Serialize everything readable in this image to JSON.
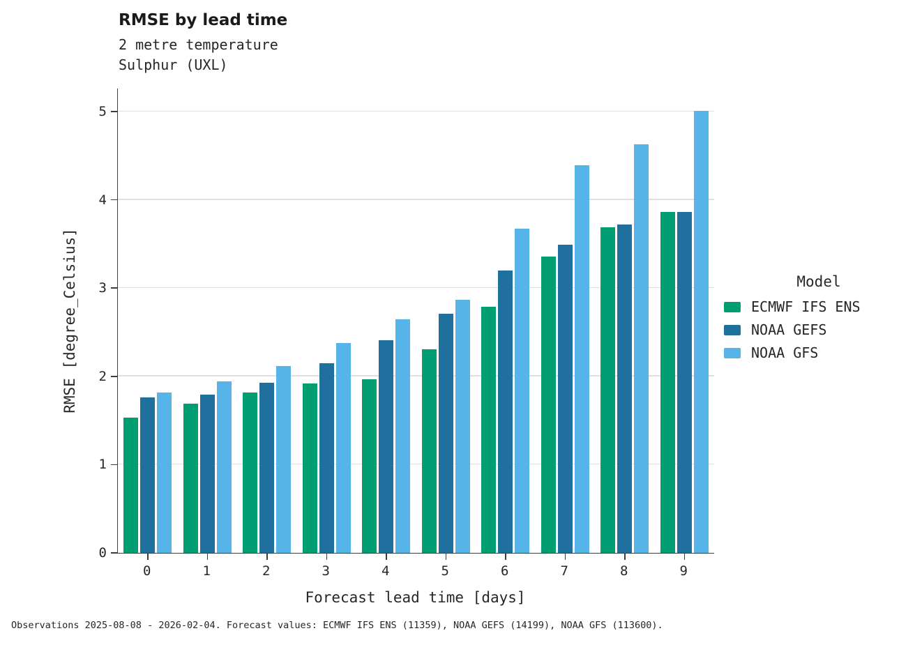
{
  "chart_data": {
    "type": "bar",
    "title": "RMSE by lead time",
    "subtitle": "2 metre temperature",
    "subtitle2": "Sulphur (UXL)",
    "xlabel": "Forecast lead time [days]",
    "ylabel": "RMSE [degree_Celsius]",
    "legend_title": "Model",
    "legend_position": "right",
    "grid": "horizontal",
    "categories": [
      "0",
      "1",
      "2",
      "3",
      "4",
      "5",
      "6",
      "7",
      "8",
      "9"
    ],
    "yticks": [
      0,
      1,
      2,
      3,
      4,
      5
    ],
    "ylim": [
      0,
      5.25
    ],
    "series": [
      {
        "name": "ECMWF IFS ENS",
        "color": "#029e73",
        "values": [
          1.53,
          1.69,
          1.82,
          1.92,
          1.97,
          2.31,
          2.79,
          3.36,
          3.69,
          3.86
        ]
      },
      {
        "name": "NOAA GEFS",
        "color": "#1f6f9f",
        "values": [
          1.76,
          1.79,
          1.93,
          2.15,
          2.41,
          2.71,
          3.2,
          3.49,
          3.72,
          3.86
        ]
      },
      {
        "name": "NOAA GFS",
        "color": "#56b4e9",
        "values": [
          1.82,
          1.94,
          2.12,
          2.38,
          2.65,
          2.87,
          3.67,
          4.39,
          4.63,
          5.01
        ]
      }
    ],
    "caption": "Observations 2025-08-08 - 2026-02-04. Forecast values: ECMWF IFS ENS (11359), NOAA GEFS (14199), NOAA GFS (113600)."
  }
}
